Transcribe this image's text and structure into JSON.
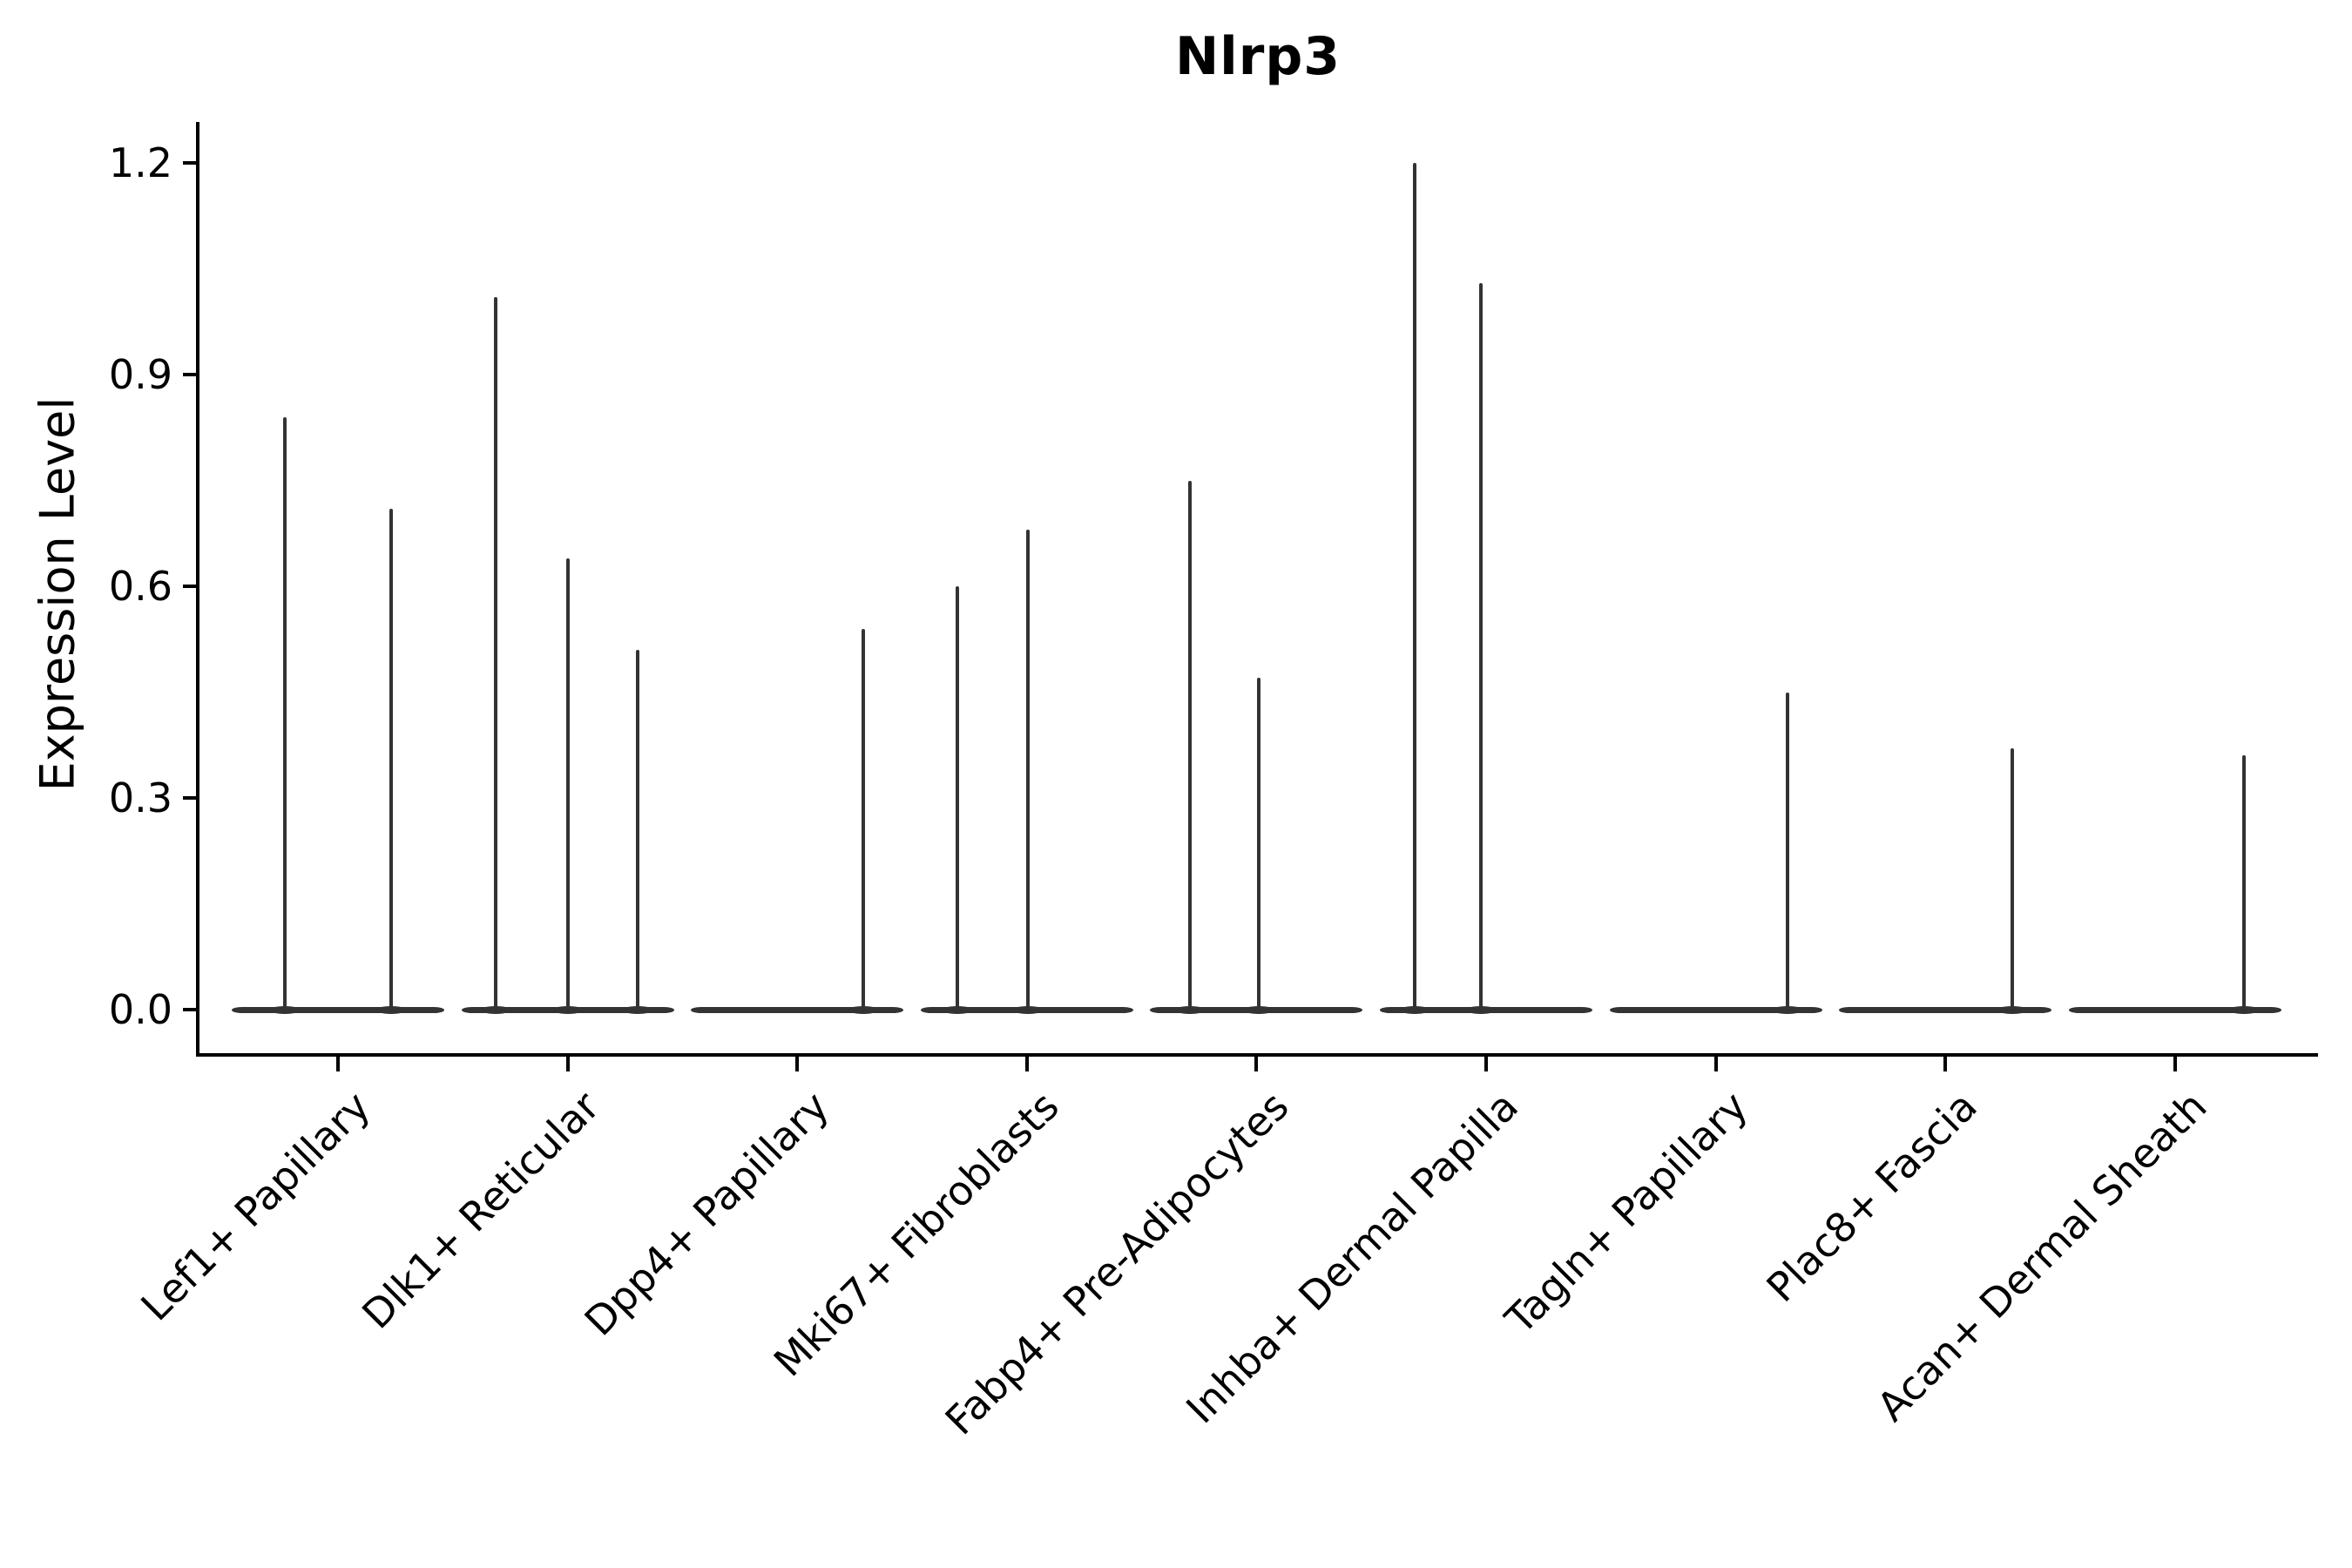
{
  "chart_data": {
    "type": "violin",
    "title": "Nlrp3",
    "ylabel": "Expression Level",
    "xlabel": "",
    "legend": "none",
    "grid": false,
    "x_tick_rotation": 45,
    "ytick_labels": [
      "0.0",
      "0.3",
      "0.6",
      "0.9",
      "1.2"
    ],
    "ytick_values": [
      0.0,
      0.3,
      0.6,
      0.9,
      1.2
    ],
    "ylim": [
      -0.065,
      1.26
    ],
    "categories": [
      {
        "label": "Lef1+ Papillary",
        "spikes": [
          {
            "offset": -61,
            "value": 0.84
          },
          {
            "offset": 61,
            "value": 0.71
          }
        ]
      },
      {
        "label": "Dlk1+ Reticular",
        "spikes": [
          {
            "offset": -83,
            "value": 1.01
          },
          {
            "offset": 0,
            "value": 0.64
          },
          {
            "offset": 80,
            "value": 0.51
          }
        ]
      },
      {
        "label": "Dpp4+ Papillary",
        "spikes": [
          {
            "offset": 76,
            "value": 0.54
          }
        ]
      },
      {
        "label": "Mki67+ Fibroblasts",
        "spikes": [
          {
            "offset": -80,
            "value": 0.6
          },
          {
            "offset": 1,
            "value": 0.68
          }
        ]
      },
      {
        "label": "Fabp4+ Pre-Adipocytes",
        "spikes": [
          {
            "offset": -76,
            "value": 0.75
          },
          {
            "offset": 3,
            "value": 0.47
          }
        ]
      },
      {
        "label": "Inhba+ Dermal Papilla",
        "spikes": [
          {
            "offset": -82,
            "value": 1.2
          },
          {
            "offset": -6,
            "value": 1.03
          }
        ]
      },
      {
        "label": "Tagln+ Papillary",
        "spikes": [
          {
            "offset": 82,
            "value": 0.45
          }
        ]
      },
      {
        "label": "Plac8+ Fascia",
        "spikes": [
          {
            "offset": 77,
            "value": 0.37
          }
        ]
      },
      {
        "label": "Acan+ Dermal Sheath",
        "spikes": [
          {
            "offset": 79,
            "value": 0.36
          }
        ]
      }
    ],
    "colors": {
      "violin": "#333333",
      "axis": "#000000",
      "text": "#000000",
      "background": "#ffffff"
    }
  }
}
